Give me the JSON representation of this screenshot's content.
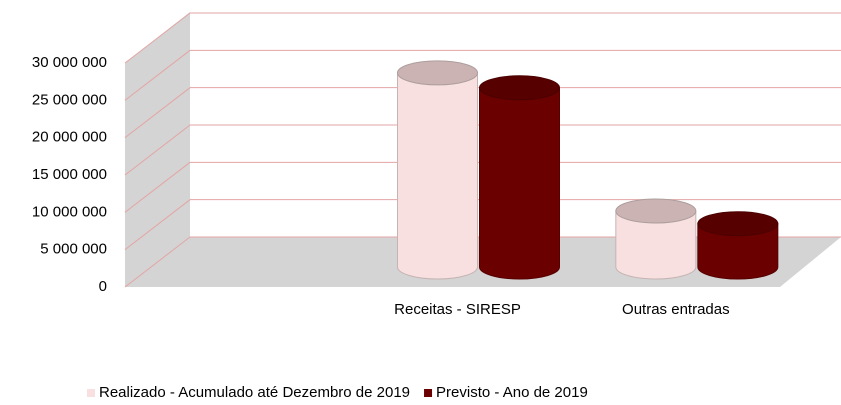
{
  "chart_data": {
    "type": "bar3d",
    "categories": [
      null,
      "Receitas - SIRESP",
      "Outras entradas"
    ],
    "series": [
      {
        "name": "Realizado - Acumulado até Dezembro de 2019",
        "color": "#f8e0e0",
        "values": [
          null,
          26000000,
          7500000
        ]
      },
      {
        "name": "Previsto - Ano de 2019",
        "color": "#6b0000",
        "values": [
          null,
          24000000,
          5800000
        ]
      }
    ],
    "ylim": [
      0,
      30000000
    ],
    "yticks": [
      0,
      {
        "value": 5000000,
        "label": "5 000 000"
      },
      {
        "value": 10000000,
        "label": "10 000 000"
      },
      {
        "value": 15000000,
        "label": "15 000 000"
      },
      {
        "value": 20000000,
        "label": "20 000 000"
      },
      {
        "value": 25000000,
        "label": "25 000 000"
      },
      {
        "value": 30000000,
        "label": "30 000 000"
      }
    ],
    "grid": true,
    "legend": "bottom"
  }
}
